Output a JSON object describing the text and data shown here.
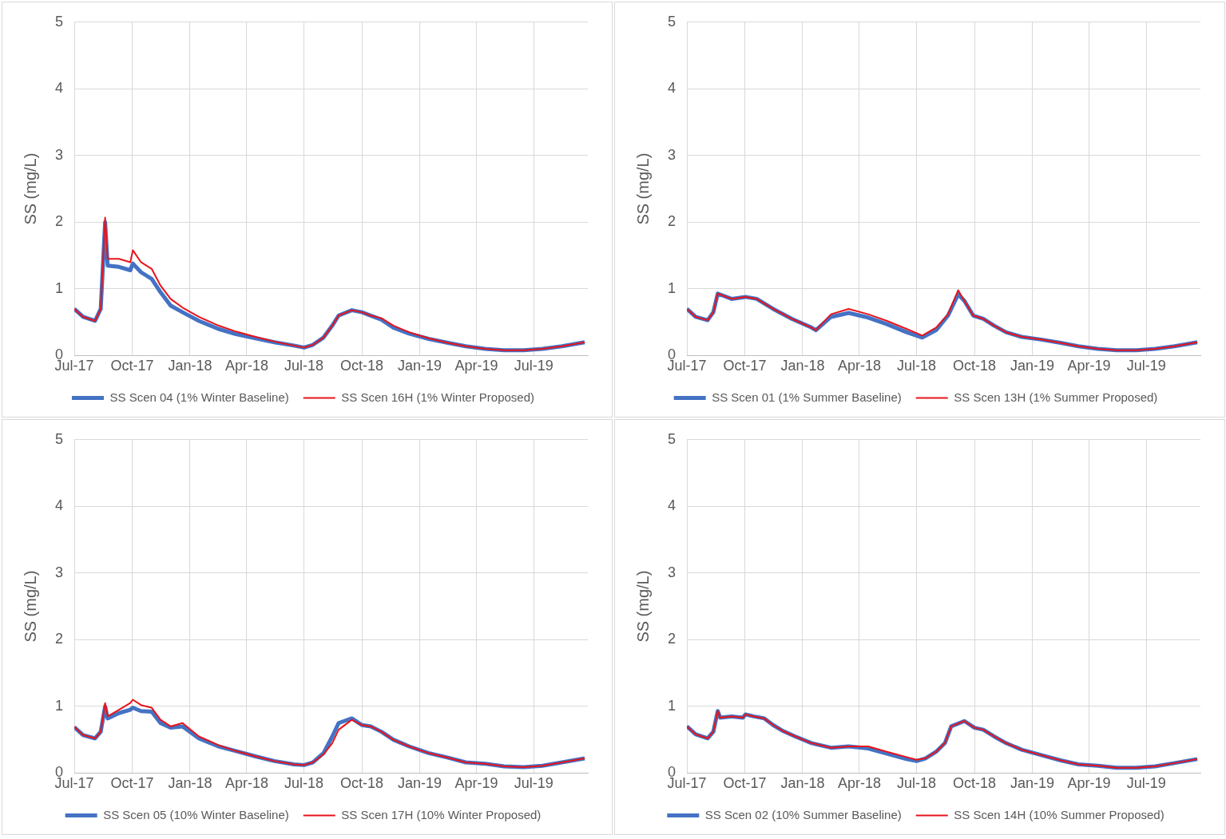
{
  "chart_data": [
    {
      "type": "line",
      "ylabel": "SS (mg/L)",
      "grid": true,
      "legend": "bottom",
      "xlim": [
        "2017-07-01",
        "2019-09-25"
      ],
      "ylim": [
        0,
        5
      ],
      "yticks": [
        0,
        1,
        2,
        3,
        4,
        5
      ],
      "xticks": [
        {
          "value": "2017-07-01",
          "label": "Jul-17"
        },
        {
          "value": "2017-10-01",
          "label": "Oct-17"
        },
        {
          "value": "2018-01-01",
          "label": "Jan-18"
        },
        {
          "value": "2018-04-01",
          "label": "Apr-18"
        },
        {
          "value": "2018-07-01",
          "label": "Jul-18"
        },
        {
          "value": "2018-10-01",
          "label": "Oct-18"
        },
        {
          "value": "2019-01-01",
          "label": "Jan-19"
        },
        {
          "value": "2019-04-01",
          "label": "Apr-19"
        },
        {
          "value": "2019-07-01",
          "label": "Jul-19"
        }
      ],
      "x": [
        "2017-07-01",
        "2017-07-15",
        "2017-08-03",
        "2017-08-12",
        "2017-08-19",
        "2017-08-23",
        "2017-09-10",
        "2017-09-28",
        "2017-10-02",
        "2017-10-15",
        "2017-11-01",
        "2017-11-15",
        "2017-12-01",
        "2017-12-20",
        "2018-01-15",
        "2018-02-15",
        "2018-03-15",
        "2018-04-15",
        "2018-05-15",
        "2018-06-15",
        "2018-07-01",
        "2018-07-15",
        "2018-08-01",
        "2018-08-15",
        "2018-08-25",
        "2018-09-15",
        "2018-10-01",
        "2018-10-15",
        "2018-11-01",
        "2018-11-20",
        "2018-12-15",
        "2019-01-15",
        "2019-02-15",
        "2019-03-15",
        "2019-04-15",
        "2019-05-15",
        "2019-06-15",
        "2019-07-15",
        "2019-08-15",
        "2019-09-20"
      ],
      "series": [
        {
          "name": "SS Scen 04 (1% Winter Baseline)",
          "color": "#4472c4",
          "values": [
            0.7,
            0.58,
            0.52,
            0.7,
            2.0,
            1.35,
            1.33,
            1.28,
            1.38,
            1.25,
            1.15,
            0.95,
            0.75,
            0.65,
            0.52,
            0.4,
            0.32,
            0.26,
            0.2,
            0.15,
            0.12,
            0.16,
            0.27,
            0.45,
            0.6,
            0.68,
            0.65,
            0.6,
            0.54,
            0.42,
            0.33,
            0.25,
            0.19,
            0.14,
            0.1,
            0.08,
            0.08,
            0.1,
            0.14,
            0.2
          ]
        },
        {
          "name": "SS Scen 16H (1% Winter Proposed)",
          "color": "#e8141b",
          "values": [
            0.7,
            0.58,
            0.52,
            0.7,
            2.07,
            1.45,
            1.45,
            1.4,
            1.58,
            1.4,
            1.3,
            1.05,
            0.85,
            0.72,
            0.58,
            0.45,
            0.36,
            0.28,
            0.21,
            0.15,
            0.12,
            0.16,
            0.27,
            0.45,
            0.6,
            0.68,
            0.65,
            0.6,
            0.56,
            0.45,
            0.35,
            0.26,
            0.19,
            0.14,
            0.1,
            0.08,
            0.08,
            0.1,
            0.14,
            0.2
          ]
        }
      ]
    },
    {
      "type": "line",
      "ylabel": "SS (mg/L)",
      "grid": true,
      "legend": "bottom",
      "xlim": [
        "2017-07-01",
        "2019-09-25"
      ],
      "ylim": [
        0,
        5
      ],
      "yticks": [
        0,
        1,
        2,
        3,
        4,
        5
      ],
      "xticks": [
        {
          "value": "2017-07-01",
          "label": "Jul-17"
        },
        {
          "value": "2017-10-01",
          "label": "Oct-17"
        },
        {
          "value": "2018-01-01",
          "label": "Jan-18"
        },
        {
          "value": "2018-04-01",
          "label": "Apr-18"
        },
        {
          "value": "2018-07-01",
          "label": "Jul-18"
        },
        {
          "value": "2018-10-01",
          "label": "Oct-18"
        },
        {
          "value": "2019-01-01",
          "label": "Jan-19"
        },
        {
          "value": "2019-04-01",
          "label": "Apr-19"
        },
        {
          "value": "2019-07-01",
          "label": "Jul-19"
        }
      ],
      "x": [
        "2017-07-01",
        "2017-07-15",
        "2017-08-03",
        "2017-08-12",
        "2017-08-19",
        "2017-09-10",
        "2017-10-02",
        "2017-10-20",
        "2017-11-15",
        "2017-12-15",
        "2018-01-15",
        "2018-01-22",
        "2018-02-15",
        "2018-03-15",
        "2018-04-15",
        "2018-05-15",
        "2018-06-15",
        "2018-07-10",
        "2018-08-01",
        "2018-08-20",
        "2018-09-05",
        "2018-09-15",
        "2018-09-29",
        "2018-10-15",
        "2018-11-01",
        "2018-11-20",
        "2018-12-15",
        "2019-01-15",
        "2019-02-15",
        "2019-03-15",
        "2019-04-15",
        "2019-05-15",
        "2019-06-15",
        "2019-07-15",
        "2019-08-15",
        "2019-09-20"
      ],
      "series": [
        {
          "name": "SS Scen 01 (1% Summer Baseline)",
          "color": "#4472c4",
          "values": [
            0.7,
            0.58,
            0.53,
            0.65,
            0.93,
            0.85,
            0.88,
            0.85,
            0.7,
            0.55,
            0.42,
            0.38,
            0.58,
            0.64,
            0.57,
            0.47,
            0.35,
            0.27,
            0.38,
            0.6,
            0.92,
            0.82,
            0.6,
            0.55,
            0.45,
            0.35,
            0.28,
            0.24,
            0.19,
            0.14,
            0.1,
            0.08,
            0.08,
            0.1,
            0.14,
            0.2
          ]
        },
        {
          "name": "SS Scen 13H (1% Summer Proposed)",
          "color": "#e8141b",
          "values": [
            0.7,
            0.58,
            0.53,
            0.65,
            0.93,
            0.85,
            0.88,
            0.85,
            0.7,
            0.55,
            0.42,
            0.38,
            0.62,
            0.7,
            0.62,
            0.52,
            0.4,
            0.3,
            0.42,
            0.62,
            0.98,
            0.82,
            0.6,
            0.55,
            0.45,
            0.35,
            0.28,
            0.24,
            0.19,
            0.14,
            0.1,
            0.08,
            0.08,
            0.1,
            0.14,
            0.2
          ]
        }
      ]
    },
    {
      "type": "line",
      "ylabel": "SS (mg/L)",
      "grid": true,
      "legend": "bottom",
      "xlim": [
        "2017-07-01",
        "2019-09-25"
      ],
      "ylim": [
        0,
        5
      ],
      "yticks": [
        0,
        1,
        2,
        3,
        4,
        5
      ],
      "xticks": [
        {
          "value": "2017-07-01",
          "label": "Jul-17"
        },
        {
          "value": "2017-10-01",
          "label": "Oct-17"
        },
        {
          "value": "2018-01-01",
          "label": "Jan-18"
        },
        {
          "value": "2018-04-01",
          "label": "Apr-18"
        },
        {
          "value": "2018-07-01",
          "label": "Jul-18"
        },
        {
          "value": "2018-10-01",
          "label": "Oct-18"
        },
        {
          "value": "2019-01-01",
          "label": "Jan-19"
        },
        {
          "value": "2019-04-01",
          "label": "Apr-19"
        },
        {
          "value": "2019-07-01",
          "label": "Jul-19"
        }
      ],
      "x": [
        "2017-07-01",
        "2017-07-15",
        "2017-08-03",
        "2017-08-12",
        "2017-08-19",
        "2017-08-23",
        "2017-09-10",
        "2017-09-28",
        "2017-10-02",
        "2017-10-15",
        "2017-11-01",
        "2017-11-15",
        "2017-12-01",
        "2017-12-20",
        "2018-01-15",
        "2018-02-15",
        "2018-03-15",
        "2018-04-15",
        "2018-05-15",
        "2018-06-15",
        "2018-07-01",
        "2018-07-15",
        "2018-08-01",
        "2018-08-15",
        "2018-08-25",
        "2018-09-15",
        "2018-10-01",
        "2018-10-15",
        "2018-11-01",
        "2018-11-20",
        "2018-12-15",
        "2019-01-15",
        "2019-02-15",
        "2019-03-15",
        "2019-04-15",
        "2019-05-15",
        "2019-06-15",
        "2019-07-15",
        "2019-08-15",
        "2019-09-20"
      ],
      "series": [
        {
          "name": "SS Scen 05 (10% Winter Baseline)",
          "color": "#4472c4",
          "values": [
            0.69,
            0.57,
            0.52,
            0.62,
            1.0,
            0.82,
            0.9,
            0.95,
            0.98,
            0.93,
            0.92,
            0.75,
            0.68,
            0.7,
            0.52,
            0.4,
            0.33,
            0.25,
            0.18,
            0.13,
            0.12,
            0.16,
            0.3,
            0.55,
            0.75,
            0.82,
            0.72,
            0.7,
            0.62,
            0.5,
            0.4,
            0.3,
            0.23,
            0.16,
            0.14,
            0.1,
            0.09,
            0.11,
            0.16,
            0.22
          ]
        },
        {
          "name": "SS Scen 17H (10% Winter Proposed)",
          "color": "#e8141b",
          "values": [
            0.69,
            0.57,
            0.52,
            0.62,
            1.05,
            0.85,
            0.95,
            1.05,
            1.1,
            1.02,
            0.98,
            0.8,
            0.7,
            0.75,
            0.55,
            0.42,
            0.33,
            0.25,
            0.18,
            0.13,
            0.12,
            0.16,
            0.28,
            0.45,
            0.65,
            0.8,
            0.72,
            0.7,
            0.62,
            0.5,
            0.4,
            0.3,
            0.23,
            0.16,
            0.14,
            0.1,
            0.09,
            0.11,
            0.16,
            0.22
          ]
        }
      ]
    },
    {
      "type": "line",
      "ylabel": "SS (mg/L)",
      "grid": true,
      "legend": "bottom",
      "xlim": [
        "2017-07-01",
        "2019-09-25"
      ],
      "ylim": [
        0,
        5
      ],
      "yticks": [
        0,
        1,
        2,
        3,
        4,
        5
      ],
      "xticks": [
        {
          "value": "2017-07-01",
          "label": "Jul-17"
        },
        {
          "value": "2017-10-01",
          "label": "Oct-17"
        },
        {
          "value": "2018-01-01",
          "label": "Jan-18"
        },
        {
          "value": "2018-04-01",
          "label": "Apr-18"
        },
        {
          "value": "2018-07-01",
          "label": "Jul-18"
        },
        {
          "value": "2018-10-01",
          "label": "Oct-18"
        },
        {
          "value": "2019-01-01",
          "label": "Jan-19"
        },
        {
          "value": "2019-04-01",
          "label": "Apr-19"
        },
        {
          "value": "2019-07-01",
          "label": "Jul-19"
        }
      ],
      "x": [
        "2017-07-01",
        "2017-07-15",
        "2017-08-03",
        "2017-08-12",
        "2017-08-19",
        "2017-08-23",
        "2017-09-10",
        "2017-09-28",
        "2017-10-02",
        "2017-10-15",
        "2017-11-01",
        "2017-11-15",
        "2017-12-01",
        "2017-12-20",
        "2018-01-15",
        "2018-02-15",
        "2018-03-15",
        "2018-04-15",
        "2018-05-15",
        "2018-06-15",
        "2018-07-01",
        "2018-07-15",
        "2018-08-01",
        "2018-08-15",
        "2018-08-25",
        "2018-09-15",
        "2018-10-01",
        "2018-10-15",
        "2018-11-01",
        "2018-11-20",
        "2018-12-15",
        "2019-01-15",
        "2019-02-15",
        "2019-03-15",
        "2019-04-15",
        "2019-05-15",
        "2019-06-15",
        "2019-07-15",
        "2019-08-15",
        "2019-09-20"
      ],
      "series": [
        {
          "name": "SS Scen 02 (10% Summer Baseline)",
          "color": "#4472c4",
          "values": [
            0.7,
            0.58,
            0.52,
            0.62,
            0.93,
            0.83,
            0.85,
            0.83,
            0.88,
            0.85,
            0.82,
            0.72,
            0.63,
            0.55,
            0.45,
            0.38,
            0.4,
            0.37,
            0.29,
            0.21,
            0.18,
            0.22,
            0.32,
            0.45,
            0.7,
            0.78,
            0.68,
            0.65,
            0.55,
            0.45,
            0.35,
            0.27,
            0.19,
            0.13,
            0.11,
            0.08,
            0.08,
            0.1,
            0.15,
            0.21
          ]
        },
        {
          "name": "SS Scen 14H (10% Summer Proposed)",
          "color": "#e8141b",
          "values": [
            0.7,
            0.58,
            0.52,
            0.62,
            0.93,
            0.83,
            0.85,
            0.83,
            0.88,
            0.85,
            0.82,
            0.72,
            0.63,
            0.55,
            0.45,
            0.38,
            0.4,
            0.4,
            0.32,
            0.24,
            0.2,
            0.22,
            0.32,
            0.45,
            0.7,
            0.78,
            0.68,
            0.65,
            0.55,
            0.45,
            0.35,
            0.27,
            0.19,
            0.13,
            0.11,
            0.08,
            0.08,
            0.1,
            0.15,
            0.21
          ]
        }
      ]
    }
  ]
}
